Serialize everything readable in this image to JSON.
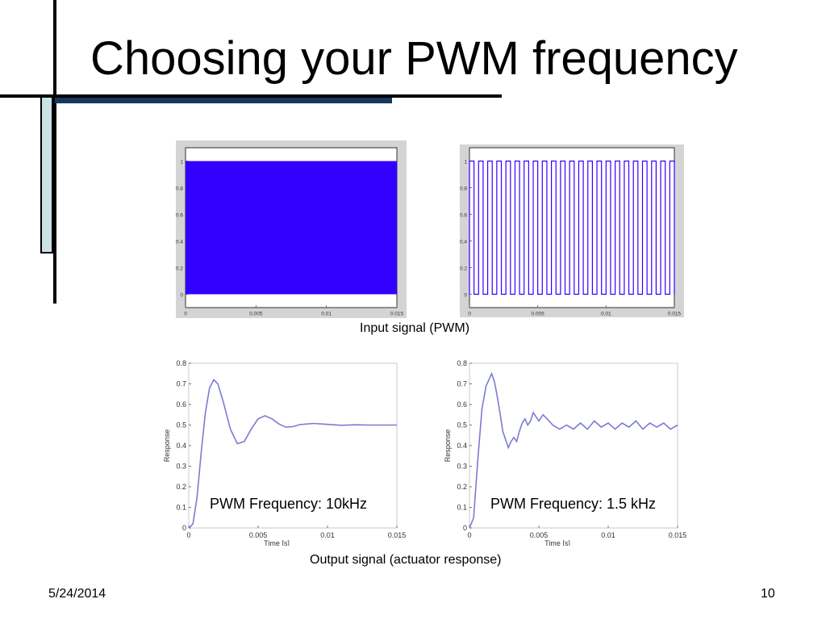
{
  "title": "Choosing your PWM frequency",
  "captions": {
    "input": "Input signal (PWM)",
    "output": "Output signal (actuator response)"
  },
  "footer": {
    "date": "5/24/2014",
    "page": "10"
  },
  "colors": {
    "pwm_fill": "#3300ff",
    "response_line": "#7b7bd6",
    "accent_bar": "#17365d",
    "panel_bg": "#cce3e6"
  },
  "chart_data": [
    {
      "type": "line",
      "description_tag": "pwm-input-10khz",
      "x_ticks": [
        "0",
        "0.005",
        "0.01",
        "0.015"
      ],
      "y_ticks": [
        "0",
        "0.2",
        "0.4",
        "0.6",
        "0.8",
        "1"
      ],
      "xlim": [
        0,
        0.015
      ],
      "ylim": [
        -0.1,
        1.1
      ],
      "grid": false,
      "series": [
        {
          "signal": "square",
          "frequency_hz": 10000,
          "low": 0,
          "high": 1,
          "x_start": 0,
          "x_end": 0.015
        }
      ]
    },
    {
      "type": "line",
      "description_tag": "pwm-input-1_5khz",
      "x_ticks": [
        "0",
        "0.005",
        "0.01",
        "0.015"
      ],
      "y_ticks": [
        "0",
        "0.2",
        "0.4",
        "0.6",
        "0.8",
        "1"
      ],
      "xlim": [
        0,
        0.015
      ],
      "ylim": [
        -0.1,
        1.1
      ],
      "grid": false,
      "series": [
        {
          "signal": "square",
          "frequency_hz": 1500,
          "low": 0,
          "high": 1,
          "x_start": 0,
          "x_end": 0.015
        }
      ]
    },
    {
      "type": "line",
      "annotation": "PWM Frequency: 10kHz",
      "xlabel": "Time [s]",
      "ylabel": "Response",
      "x_ticks": [
        "0",
        "0.005",
        "0.01",
        "0.015"
      ],
      "y_ticks": [
        "0",
        "0.1",
        "0.2",
        "0.3",
        "0.4",
        "0.5",
        "0.6",
        "0.7",
        "0.8"
      ],
      "xlim": [
        0,
        0.015
      ],
      "ylim": [
        0,
        0.8
      ],
      "grid": false,
      "series": [
        {
          "x": [
            0,
            0.0003,
            0.0006,
            0.0009,
            0.0012,
            0.0015,
            0.0018,
            0.0021,
            0.0025,
            0.003,
            0.0035,
            0.004,
            0.0045,
            0.005,
            0.0055,
            0.006,
            0.0065,
            0.007,
            0.0075,
            0.008,
            0.009,
            0.01,
            0.011,
            0.012,
            0.013,
            0.014,
            0.015
          ],
          "y": [
            0,
            0.02,
            0.15,
            0.37,
            0.56,
            0.68,
            0.72,
            0.7,
            0.61,
            0.48,
            0.41,
            0.42,
            0.48,
            0.53,
            0.545,
            0.53,
            0.505,
            0.49,
            0.492,
            0.502,
            0.508,
            0.503,
            0.499,
            0.501,
            0.5,
            0.5,
            0.5
          ]
        }
      ]
    },
    {
      "type": "line",
      "annotation": "PWM Frequency: 1.5 kHz",
      "xlabel": "Time [s]",
      "ylabel": "Response",
      "x_ticks": [
        "0",
        "0.005",
        "0.01",
        "0.015"
      ],
      "y_ticks": [
        "0",
        "0.1",
        "0.2",
        "0.3",
        "0.4",
        "0.5",
        "0.6",
        "0.7",
        "0.8"
      ],
      "xlim": [
        0,
        0.015
      ],
      "ylim": [
        0,
        0.8
      ],
      "grid": false,
      "series": [
        {
          "x": [
            0,
            0.0003,
            0.0006,
            0.0009,
            0.0012,
            0.0014,
            0.0016,
            0.0018,
            0.002,
            0.0022,
            0.0024,
            0.0026,
            0.0028,
            0.003,
            0.0032,
            0.0034,
            0.0036,
            0.0038,
            0.004,
            0.0042,
            0.0044,
            0.0046,
            0.0048,
            0.005,
            0.0053,
            0.0056,
            0.006,
            0.0065,
            0.007,
            0.0075,
            0.008,
            0.0085,
            0.009,
            0.0095,
            0.01,
            0.0105,
            0.011,
            0.0115,
            0.012,
            0.0125,
            0.013,
            0.0135,
            0.014,
            0.0145,
            0.015
          ],
          "y": [
            0,
            0.05,
            0.33,
            0.58,
            0.69,
            0.72,
            0.75,
            0.71,
            0.64,
            0.56,
            0.47,
            0.43,
            0.39,
            0.42,
            0.44,
            0.42,
            0.47,
            0.51,
            0.53,
            0.5,
            0.52,
            0.56,
            0.54,
            0.52,
            0.55,
            0.53,
            0.5,
            0.48,
            0.5,
            0.48,
            0.51,
            0.48,
            0.52,
            0.49,
            0.51,
            0.48,
            0.51,
            0.49,
            0.52,
            0.48,
            0.51,
            0.49,
            0.51,
            0.48,
            0.5
          ]
        }
      ]
    }
  ]
}
